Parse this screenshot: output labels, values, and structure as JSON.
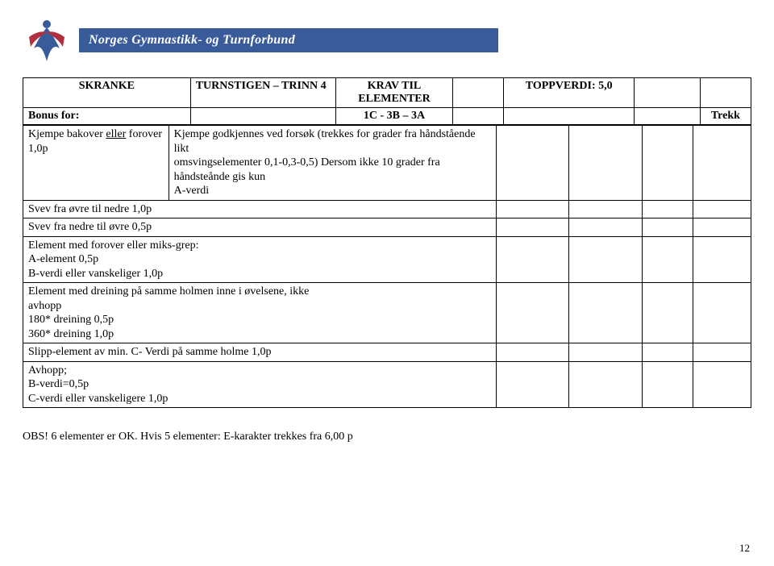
{
  "banner": {
    "org_name": "Norges Gymnastikk- og Turnforbund",
    "logo_primary": "#3a5b99",
    "logo_accent": "#b03040"
  },
  "header": {
    "col1": "SKRANKE",
    "col2": "TURNSTIGEN – TRINN 4",
    "col3_line1": "KRAV TIL",
    "col3_line2": "ELEMENTER",
    "col5": "TOPPVERDI: 5,0",
    "bonus_label": "Bonus for:",
    "bonus_center": "1C - 3B – 3A",
    "bonus_right": "Trekk"
  },
  "rows": [
    {
      "left_a": "Kjempe bakover ",
      "left_u": "eller",
      "left_b": " forover 1,0p",
      "right_lines": [
        "Kjempe godkjennes ved forsøk (trekkes for grader fra håndstående likt",
        "omsvingselementer 0,1-0,3-0,5) Dersom ikke 10 grader fra håndsteånde gis kun",
        "A-verdi"
      ]
    },
    {
      "left_lines": [
        "Svev fra øvre til nedre 1,0p"
      ],
      "right_lines": []
    },
    {
      "left_lines": [
        "Svev fra nedre til øvre 0,5p"
      ],
      "right_lines": []
    },
    {
      "left_lines": [
        "Element med forover eller miks-grep:",
        "A-element 0,5p",
        "B-verdi eller vanskeliger 1,0p"
      ],
      "right_lines": []
    },
    {
      "left_lines": [
        "Element med dreining på samme holmen inne i øvelsene, ikke",
        "avhopp",
        "180* dreining 0,5p",
        "360* dreining 1,0p"
      ],
      "right_lines": []
    },
    {
      "left_lines": [
        "Slipp-element av min. C- Verdi på samme holme 1,0p"
      ],
      "right_lines": []
    },
    {
      "left_lines": [
        "Avhopp;",
        "B-verdi=0,5p",
        "C-verdi eller vanskeligere 1,0p"
      ],
      "right_lines": []
    }
  ],
  "footer": {
    "obs": "OBS! 6 elementer er OK. Hvis 5 elementer: E-karakter trekkes fra 6,00 p",
    "page": "12"
  }
}
